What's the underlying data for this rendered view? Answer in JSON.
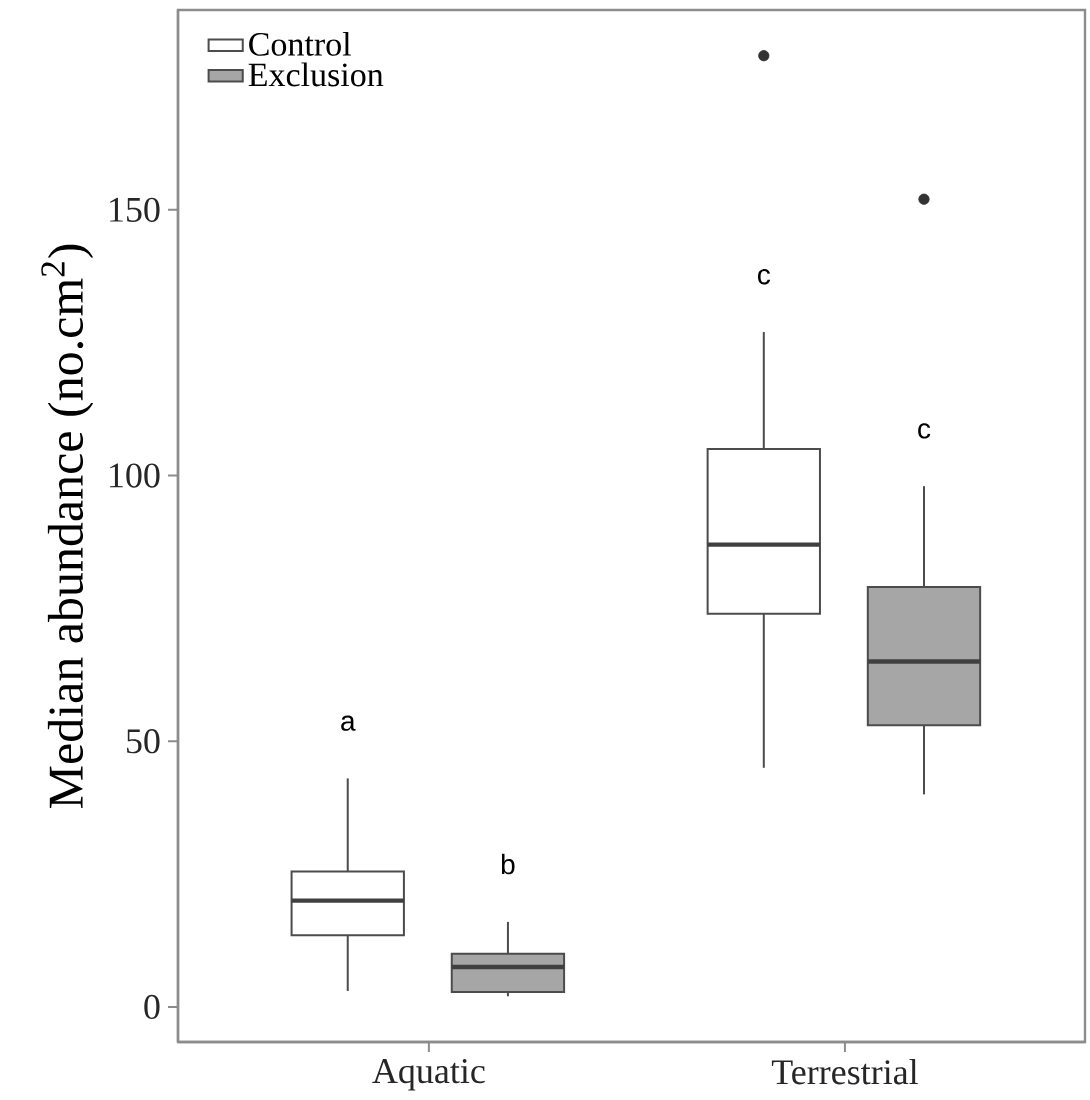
{
  "chart_data": {
    "type": "box",
    "ylabel": "Median abundance (no.cm$^{2}$)",
    "categories": [
      "Aquatic",
      "Terrestrial"
    ],
    "series": [
      {
        "name": "Control",
        "color": "#ffffff",
        "boxes": [
          {
            "low": 3,
            "q1": 13.5,
            "median": 20,
            "q3": 25.5,
            "high": 43
          },
          {
            "low": 45,
            "q1": 74,
            "median": 87,
            "q3": 105,
            "high": 127,
            "outliers": [
              179
            ]
          }
        ]
      },
      {
        "name": "Exclusion",
        "color": "#a6a6a6",
        "boxes": [
          {
            "low": 2,
            "q1": 2.8,
            "median": 7.5,
            "q3": 10,
            "high": 16
          },
          {
            "low": 40,
            "q1": 53,
            "median": 65,
            "q3": 79,
            "high": 98,
            "outliers": [
              152
            ]
          }
        ]
      }
    ],
    "annotations": [
      "a",
      "b",
      "c",
      "c"
    ],
    "ylim": [
      -6.6,
      187.6
    ],
    "yticks": [
      0,
      50,
      100,
      150
    ],
    "grid": false,
    "legend": "top left"
  }
}
